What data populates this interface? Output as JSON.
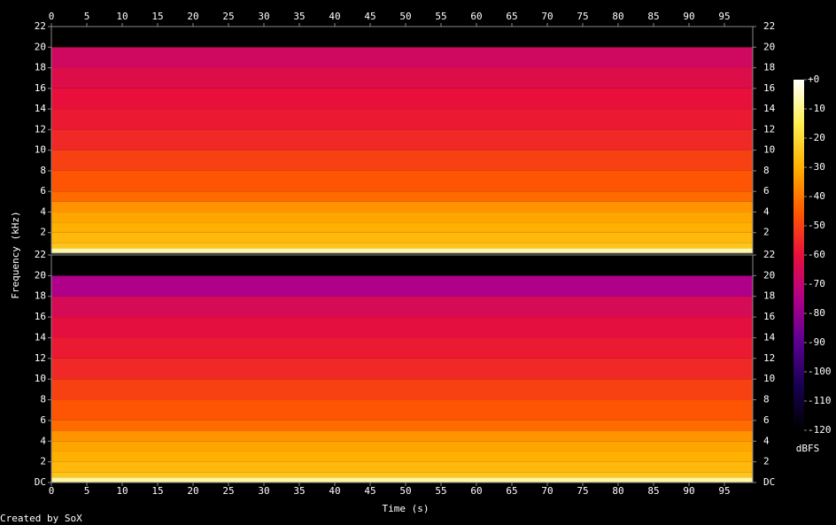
{
  "chart_data": {
    "type": "spectrogram",
    "xlabel": "Time (s)",
    "ylabel": "Frequency (kHz)",
    "footer": "Created by SoX",
    "xlim": [
      0,
      99
    ],
    "xticks": [
      0,
      5,
      10,
      15,
      20,
      25,
      30,
      35,
      40,
      45,
      50,
      55,
      60,
      65,
      70,
      75,
      80,
      85,
      90,
      95
    ],
    "channels": [
      {
        "ylim": [
          0,
          22
        ],
        "yticks": [
          2,
          4,
          6,
          8,
          10,
          12,
          14,
          16,
          18,
          20,
          22
        ],
        "bins": [
          0,
          0.5,
          1,
          2,
          3,
          4,
          5,
          6,
          8,
          10,
          12,
          14,
          16,
          18,
          20,
          22
        ],
        "levels": [
          -8,
          -25,
          -28,
          -30,
          -32,
          -35,
          -42,
          -46,
          -50,
          -55,
          -58,
          -60,
          -63,
          -67,
          -120
        ]
      },
      {
        "ylim": [
          0,
          22
        ],
        "yticks": [
          {
            "value": 0,
            "label": "DC"
          },
          2,
          4,
          6,
          8,
          10,
          12,
          14,
          16,
          18,
          20,
          22
        ],
        "bins": [
          0,
          0.5,
          1,
          2,
          3,
          4,
          5,
          6,
          8,
          10,
          12,
          14,
          16,
          18,
          20,
          22
        ],
        "levels": [
          -8,
          -25,
          -28,
          -30,
          -32,
          -35,
          -42,
          -46,
          -50,
          -55,
          -58,
          -61,
          -65,
          -75,
          -120
        ]
      }
    ],
    "colorbar": {
      "label": "dBFS",
      "clim": [
        -120,
        0
      ],
      "ticks": [
        {
          "value": 0,
          "label": "+0"
        },
        -10,
        -20,
        -30,
        -40,
        -50,
        -60,
        -70,
        -80,
        -90,
        -100,
        -110,
        -120
      ],
      "colormap": [
        "#000000",
        "#170050",
        "#5a0090",
        "#b0008a",
        "#e8103a",
        "#ff5a00",
        "#ffb000",
        "#ffef50",
        "#ffffff"
      ]
    }
  }
}
